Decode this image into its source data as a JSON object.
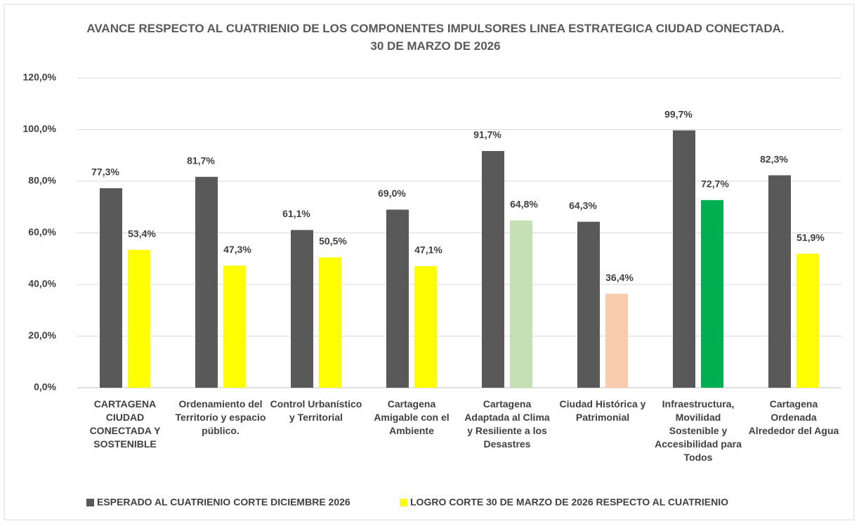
{
  "chart_data": {
    "type": "bar",
    "title": "AVANCE RESPECTO AL CUATRIENIO DE LOS COMPONENTES IMPULSORES LINEA ESTRATEGICA CIUDAD CONECTADA.  30 DE MARZO DE 2026",
    "categories": [
      "CARTAGENA CIUDAD CONECTADA Y SOSTENIBLE",
      "Ordenamiento del Territorio y espacio público.",
      "Control Urbanístico y Territorial",
      "Cartagena Amigable con el Ambiente",
      "Cartagena Adaptada al Clima y Resiliente a los Desastres",
      "Ciudad Histórica y Patrimonial",
      "Infraestructura, Movilidad Sostenible y Accesibilidad para Todos",
      "Cartagena Ordenada Alrededor del Agua"
    ],
    "series": [
      {
        "name": "ESPERADO  AL CUATRIENIO CORTE DICIEMBRE 2026",
        "color": "#595959",
        "values": [
          77.3,
          81.7,
          61.1,
          69.0,
          91.7,
          64.3,
          99.7,
          82.3
        ],
        "value_labels": [
          "77,3%",
          "81,7%",
          "61,1%",
          "69,0%",
          "91,7%",
          "64,3%",
          "99,7%",
          "82,3%"
        ]
      },
      {
        "name": "LOGRO  CORTE  30 DE MARZO DE 2026 RESPECTO AL CUATRIENIO",
        "color": "#ffff00",
        "colors": [
          "#ffff00",
          "#ffff00",
          "#ffff00",
          "#ffff00",
          "#c5e0b4",
          "#f8cbad",
          "#00b050",
          "#ffff00"
        ],
        "values": [
          53.4,
          47.3,
          50.5,
          47.1,
          64.8,
          36.4,
          72.7,
          51.9
        ],
        "value_labels": [
          "53,4%",
          "47,3%",
          "50,5%",
          "47,1%",
          "64,8%",
          "36,4%",
          "72,7%",
          "51,9%"
        ]
      }
    ],
    "ylim": [
      0,
      120
    ],
    "yticks": [
      {
        "value": 0,
        "label": "0,0%"
      },
      {
        "value": 20,
        "label": "20,0%"
      },
      {
        "value": 40,
        "label": "40,0%"
      },
      {
        "value": 60,
        "label": "60,0%"
      },
      {
        "value": 80,
        "label": "80,0%"
      },
      {
        "value": 100,
        "label": "100,0%"
      },
      {
        "value": 120,
        "label": "120,0%"
      }
    ],
    "grid": true,
    "legend": "bottom"
  }
}
